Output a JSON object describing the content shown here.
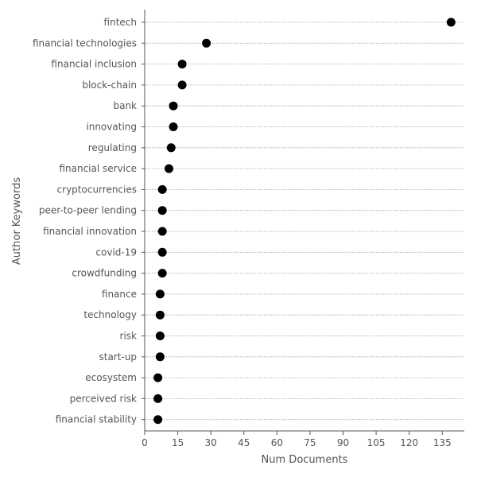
{
  "chart_data": {
    "type": "scatter",
    "title": "",
    "xlabel": "Num Documents",
    "ylabel": "Author Keywords",
    "xlim": [
      0,
      145
    ],
    "xticks": [
      0,
      15,
      30,
      45,
      60,
      75,
      90,
      105,
      120,
      135
    ],
    "grid": "dotted horizontal lines per category",
    "categories": [
      "fintech",
      "financial technologies",
      "financial inclusion",
      "block-chain",
      "bank",
      "innovating",
      "regulating",
      "financial service",
      "cryptocurrencies",
      "peer-to-peer lending",
      "financial innovation",
      "covid-19",
      "crowdfunding",
      "finance",
      "technology",
      "risk",
      "start-up",
      "ecosystem",
      "perceived risk",
      "financial stability"
    ],
    "values": [
      139,
      28,
      17,
      17,
      13,
      13,
      12,
      11,
      8,
      8,
      8,
      8,
      8,
      7,
      7,
      7,
      7,
      6,
      6,
      6
    ],
    "colors": {
      "marker": "#000000",
      "grid": "#9e9e9e",
      "axis": "#555555",
      "text": "#555555"
    }
  }
}
